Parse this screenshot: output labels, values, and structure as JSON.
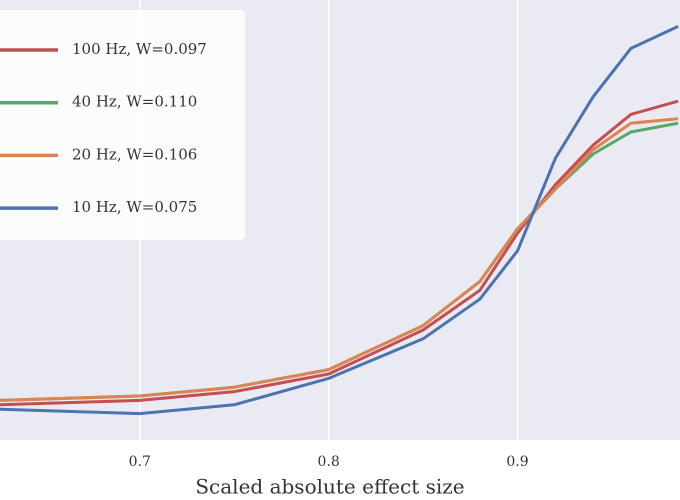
{
  "chart_data": {
    "type": "line",
    "xlabel": "Scaled absolute effect size",
    "x": [
      0.626,
      0.7,
      0.75,
      0.8,
      0.85,
      0.88,
      0.9,
      0.92,
      0.94,
      0.96,
      0.985
    ],
    "series": [
      {
        "name": "100 Hz, W=0.097",
        "color": "#c44e52",
        "values": [
          0.08,
          0.09,
          0.11,
          0.15,
          0.25,
          0.34,
          0.47,
          0.58,
          0.67,
          0.74,
          0.77
        ]
      },
      {
        "name": "40 Hz, W=0.110",
        "color": "#55a868",
        "values": [
          0.09,
          0.1,
          0.12,
          0.16,
          0.26,
          0.36,
          0.48,
          0.57,
          0.65,
          0.7,
          0.72
        ]
      },
      {
        "name": "20 Hz, W=0.106",
        "color": "#dd8452",
        "values": [
          0.09,
          0.1,
          0.12,
          0.16,
          0.26,
          0.36,
          0.48,
          0.57,
          0.66,
          0.72,
          0.73
        ]
      },
      {
        "name": "10 Hz, W=0.075",
        "color": "#4c72b0",
        "values": [
          0.07,
          0.06,
          0.08,
          0.14,
          0.23,
          0.32,
          0.43,
          0.64,
          0.78,
          0.89,
          0.94
        ]
      }
    ],
    "xlim": [
      0.626,
      0.986
    ],
    "xticks": [
      0.7,
      0.8,
      0.9
    ],
    "ylim": [
      0,
      1
    ],
    "grid": true,
    "legend": "upper left"
  }
}
